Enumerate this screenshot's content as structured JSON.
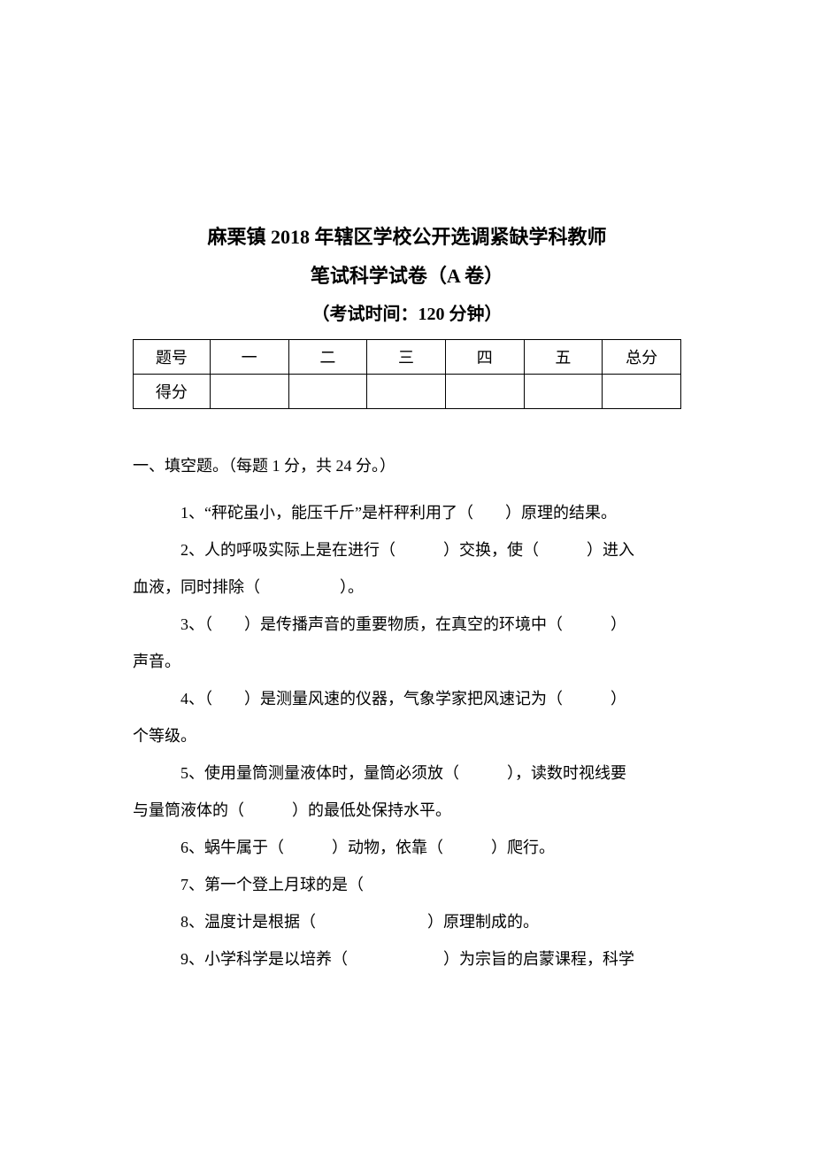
{
  "header": {
    "title": "麻栗镇 2018 年辖区学校公开选调紧缺学科教师",
    "subtitle": "笔试科学试卷（A 卷）",
    "exam_time": "（考试时间：120 分钟）"
  },
  "score_table": {
    "row1": {
      "label": "题号",
      "c1": "一",
      "c2": "二",
      "c3": "三",
      "c4": "四",
      "c5": "五",
      "c6": "总分"
    },
    "row2": {
      "label": "得分",
      "c1": "",
      "c2": "",
      "c3": "",
      "c4": "",
      "c5": "",
      "c6": ""
    }
  },
  "section1": {
    "header": "一、填空题。（每题 1 分，共 24 分。）",
    "q1": "1、“秤砣虽小，能压千斤”是杆秤利用了（　　）原理的结果。",
    "q2": "2、人的呼吸实际上是在进行（　　　）交换，使（　　　）进入",
    "q2_cont": "血液，同时排除（　　　　　）。",
    "q3": "3、（　　）是传播声音的重要物质，在真空的环境中（　　　）",
    "q3_cont": "声音。",
    "q4": "4、（　　）是测量风速的仪器，气象学家把风速记为（　　　）",
    "q4_cont": "个等级。",
    "q5": "5、使用量筒测量液体时，量筒必须放（　　　），读数时视线要",
    "q5_cont": "与量筒液体的（　　　）的最低处保持水平。",
    "q6": "6、蜗牛属于（　　　）动物，依靠（　　　）爬行。",
    "q7": "7、第一个登上月球的是（",
    "q8": "8、温度计是根据（　　　　　　　）原理制成的。",
    "q9": "9、小学科学是以培养（　　　　　　）为宗旨的启蒙课程，科学"
  },
  "styles": {
    "background_color": "#ffffff",
    "text_color": "#000000",
    "title_fontsize": 22,
    "body_fontsize": 18,
    "font_family": "SimSun"
  }
}
